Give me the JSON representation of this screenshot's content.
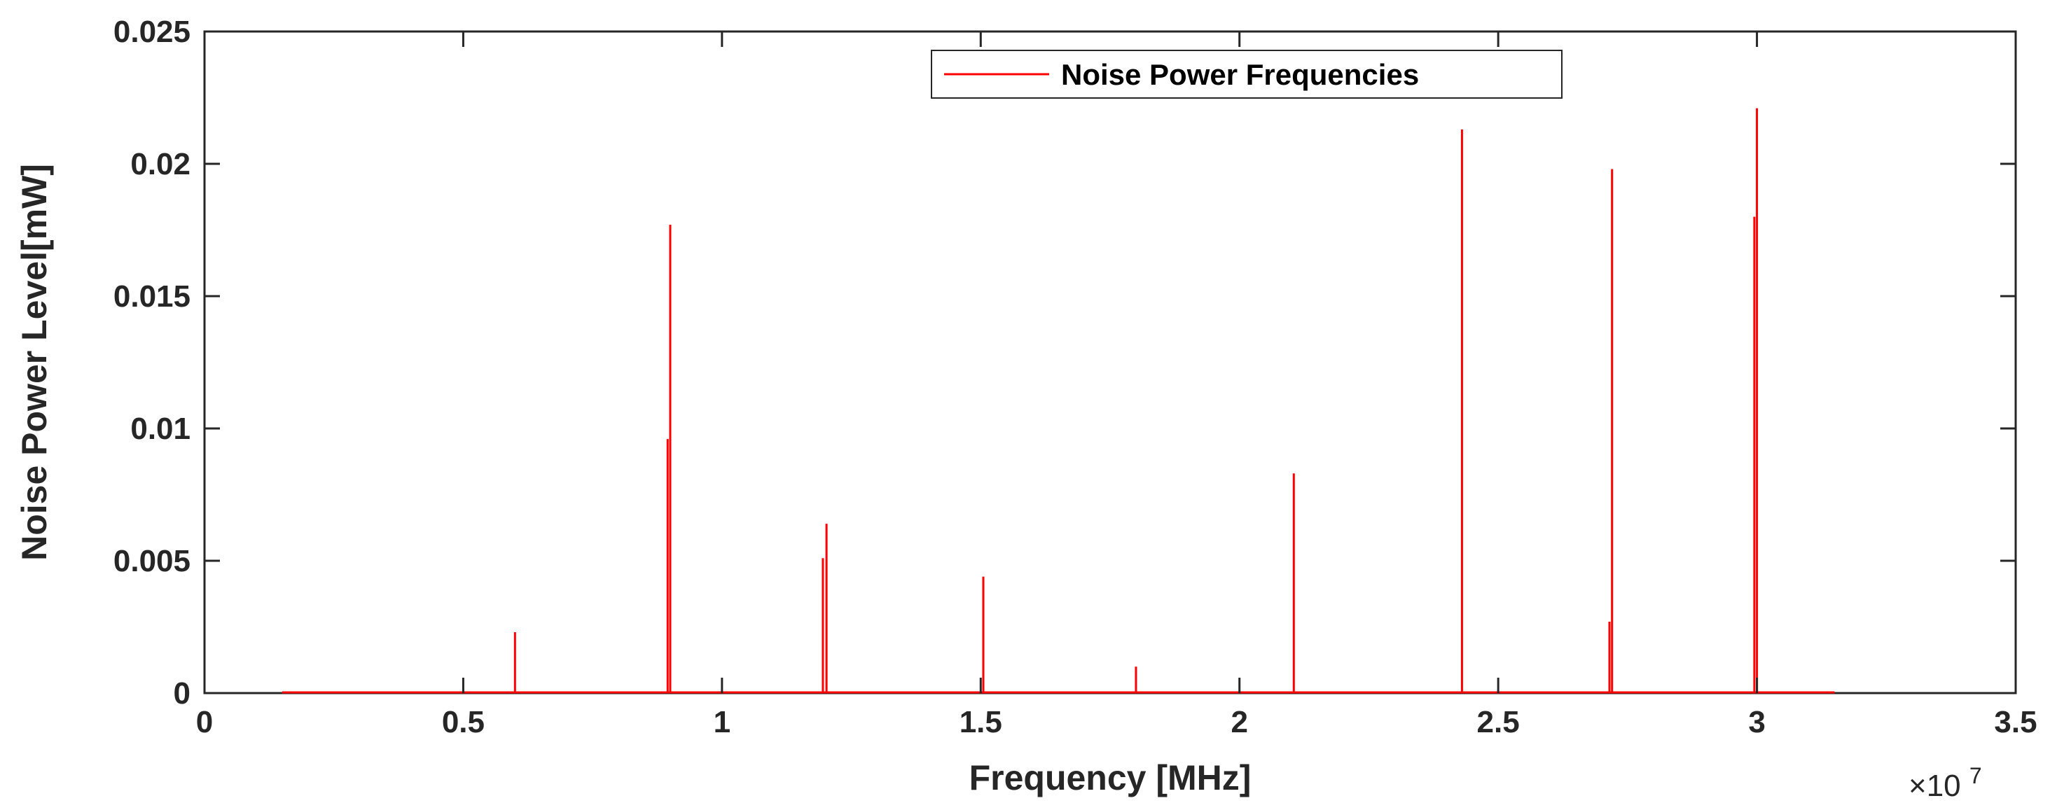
{
  "chart_data": {
    "type": "line",
    "xlabel": "Frequency [MHz]",
    "ylabel": "Noise Power Level[mW]",
    "xlim": [
      0,
      35000000
    ],
    "ylim": [
      0,
      0.025
    ],
    "x_ticks": [
      0,
      5000000,
      10000000,
      15000000,
      20000000,
      25000000,
      30000000,
      35000000
    ],
    "x_tick_labels": [
      "0",
      "0.5",
      "1",
      "1.5",
      "2",
      "2.5",
      "3",
      "3.5"
    ],
    "y_ticks": [
      0,
      0.005,
      0.01,
      0.015,
      0.02,
      0.025
    ],
    "y_tick_labels": [
      "0",
      "0.005",
      "0.01",
      "0.015",
      "0.02",
      "0.025"
    ],
    "x_exponent": {
      "base": "×10",
      "power": "7"
    },
    "grid": false,
    "legend": {
      "position": "top-center"
    },
    "series": [
      {
        "name": "Noise Power Frequencies",
        "color": "#ff0000",
        "baseline_range": [
          1500000,
          31500000
        ],
        "spikes": [
          {
            "x": 6000000,
            "y": 0.0023
          },
          {
            "x": 8950000,
            "y": 0.0096
          },
          {
            "x": 9000000,
            "y": 0.0177
          },
          {
            "x": 11950000,
            "y": 0.0051
          },
          {
            "x": 12020000,
            "y": 0.0064
          },
          {
            "x": 15050000,
            "y": 0.0044
          },
          {
            "x": 18000000,
            "y": 0.001
          },
          {
            "x": 21050000,
            "y": 0.0083
          },
          {
            "x": 24300000,
            "y": 0.0213
          },
          {
            "x": 27150000,
            "y": 0.0027
          },
          {
            "x": 27200000,
            "y": 0.0198
          },
          {
            "x": 29950000,
            "y": 0.018
          },
          {
            "x": 30000000,
            "y": 0.0221
          }
        ]
      }
    ]
  }
}
